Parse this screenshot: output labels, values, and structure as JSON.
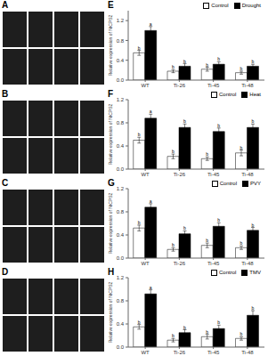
{
  "chart_data": [
    {
      "type": "bar",
      "title": "E",
      "annotations": [
        "A"
      ],
      "ylabel": "Relative expression of NtCPS2",
      "categories": [
        "WT",
        "Ti-26",
        "Ti-45",
        "Ti-48"
      ],
      "series": [
        {
          "name": "Control",
          "color": "#ffffff",
          "values": [
            0.55,
            0.18,
            0.22,
            0.15
          ],
          "error": [
            0.05,
            0.03,
            0.04,
            0.03
          ],
          "annotations": [
            "b",
            "b",
            "b",
            "b"
          ]
        },
        {
          "name": "Drought",
          "color": "#000000",
          "values": [
            1.0,
            0.28,
            0.32,
            0.28
          ],
          "error": [
            0.08,
            0.05,
            0.05,
            0.04
          ],
          "annotations": [
            "a",
            "b",
            "b",
            "b"
          ]
        }
      ],
      "ylim": [
        0,
        1.4
      ],
      "yticks": [
        {
          "value": 0,
          "label": "0.0"
        },
        0.4,
        0.8,
        1.2
      ],
      "grid": false,
      "legend": "upper right"
    },
    {
      "type": "bar",
      "title": "F",
      "annotations": [
        "B"
      ],
      "ylabel": "Relative expression of NtCPS2",
      "categories": [
        "WT",
        "Ti-26",
        "Ti-45",
        "Ti-48"
      ],
      "series": [
        {
          "name": "Control",
          "color": "#ffffff",
          "values": [
            0.5,
            0.22,
            0.18,
            0.28
          ],
          "error": [
            0.05,
            0.04,
            0.03,
            0.05
          ],
          "annotations": [
            "b",
            "b",
            "b",
            "b"
          ]
        },
        {
          "name": "Heat",
          "color": "#000000",
          "values": [
            0.88,
            0.72,
            0.65,
            0.72
          ],
          "error": [
            0.07,
            0.06,
            0.06,
            0.06
          ],
          "annotations": [
            "a",
            "b",
            "b",
            "b"
          ]
        }
      ],
      "ylim": [
        0,
        1.2
      ],
      "yticks": [
        {
          "value": 0,
          "label": "0.0"
        },
        0.4,
        0.8,
        1.2
      ],
      "grid": false,
      "legend": "upper right"
    },
    {
      "type": "bar",
      "title": "G",
      "annotations": [
        "C"
      ],
      "ylabel": "Relative expression of NtCPS2",
      "categories": [
        "WT",
        "Ti-26",
        "Ti-45",
        "Ti-48"
      ],
      "series": [
        {
          "name": "Control",
          "color": "#ffffff",
          "values": [
            0.52,
            0.15,
            0.22,
            0.18
          ],
          "error": [
            0.05,
            0.03,
            0.04,
            0.03
          ],
          "annotations": [
            "b",
            "b",
            "b",
            "b"
          ]
        },
        {
          "name": "PVY",
          "color": "#000000",
          "values": [
            0.88,
            0.42,
            0.55,
            0.48
          ],
          "error": [
            0.06,
            0.05,
            0.06,
            0.05
          ],
          "annotations": [
            "a",
            "b",
            "b",
            "b"
          ]
        }
      ],
      "ylim": [
        0,
        1.2
      ],
      "yticks": [
        {
          "value": 0,
          "label": "0.0"
        },
        0.4,
        0.8,
        1.2
      ],
      "grid": false,
      "legend": "upper right"
    },
    {
      "type": "bar",
      "title": "H",
      "annotations": [
        "D"
      ],
      "ylabel": "Relative expression of NtCPS2",
      "categories": [
        "WT",
        "Ti-26",
        "Ti-45",
        "Ti-48"
      ],
      "series": [
        {
          "name": "Control",
          "color": "#ffffff",
          "values": [
            0.35,
            0.12,
            0.18,
            0.15
          ],
          "error": [
            0.04,
            0.03,
            0.04,
            0.03
          ],
          "annotations": [
            "b",
            "b",
            "b",
            "b"
          ]
        },
        {
          "name": "TMV",
          "color": "#000000",
          "values": [
            0.92,
            0.25,
            0.32,
            0.55
          ],
          "error": [
            0.07,
            0.05,
            0.06,
            0.08
          ],
          "annotations": [
            "a",
            "b",
            "b",
            "b"
          ]
        }
      ],
      "ylim": [
        0,
        1.2
      ],
      "yticks": [
        {
          "value": 0,
          "label": "0.0"
        },
        0.4,
        0.8,
        1.2
      ],
      "grid": false,
      "legend": "upper right"
    }
  ]
}
